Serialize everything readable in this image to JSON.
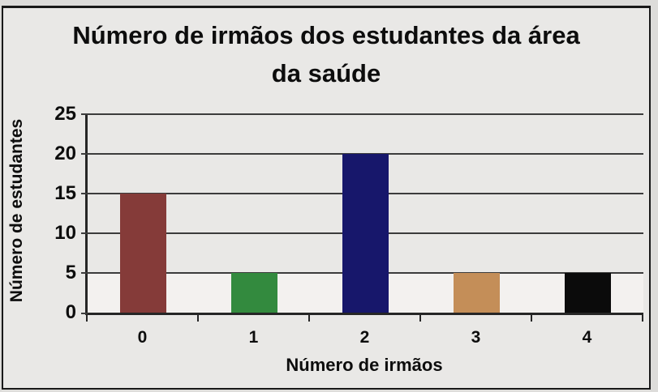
{
  "figure": {
    "background": "#e9e8e6",
    "border_color": "#191919"
  },
  "chart_data": {
    "type": "bar",
    "title": "Número de irmãos dos estudantes da área da saúde",
    "xlabel": "Número de irmãos",
    "ylabel": "Número de estudantes",
    "categories": [
      "0",
      "1",
      "2",
      "3",
      "4"
    ],
    "values": [
      15,
      5,
      20,
      5,
      5
    ],
    "bar_colors": [
      "#853b39",
      "#338a3e",
      "#17176b",
      "#c48e58",
      "#0b0b0b"
    ],
    "ylim": [
      0,
      25
    ],
    "yticks": [
      0,
      5,
      10,
      15,
      20,
      25
    ],
    "grid": "horizontal-on",
    "legend": "none",
    "gridline_color": "#3c3c3c",
    "axis_color": "#262626",
    "text_color": "#0d0d0d"
  }
}
